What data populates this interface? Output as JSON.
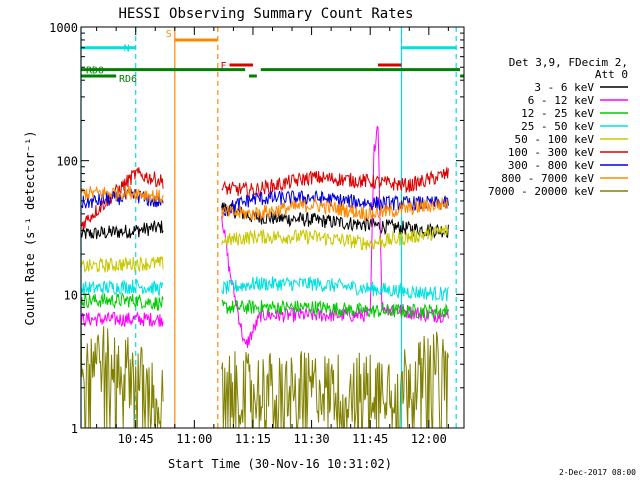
{
  "chart_data": {
    "type": "line",
    "title": "HESSI Observing Summary Count Rates",
    "xlabel": "Start Time (30-Nov-16 10:31:02)",
    "ylabel": "Count Rate (s⁻¹ detector⁻¹)",
    "yscale": "log",
    "ylim": [
      1,
      1000
    ],
    "xlim": [
      "10:31",
      "12:09"
    ],
    "x_ticks": [
      "10:45",
      "11:00",
      "11:15",
      "11:30",
      "11:45",
      "12:00"
    ],
    "y_ticks": [
      "1",
      "10",
      "100",
      "1000"
    ],
    "timestamp": "2-Dec-2017 08:00",
    "legend": {
      "position": "right",
      "header": [
        "Det 3,9, FDecim 2,",
        "Att 0"
      ],
      "entries": [
        {
          "label": "3 - 6 keV",
          "color": "#000000"
        },
        {
          "label": "6 - 12 keV",
          "color": "#ff00ff"
        },
        {
          "label": "12 - 25 keV",
          "color": "#00cc00"
        },
        {
          "label": "25 - 50 keV",
          "color": "#00e0e0"
        },
        {
          "label": "50 - 100 keV",
          "color": "#c8c800"
        },
        {
          "label": "100 - 300 keV",
          "color": "#dd0000"
        },
        {
          "label": "300 - 800 keV",
          "color": "#0000dd"
        },
        {
          "label": "800 - 7000 keV",
          "color": "#ff8800"
        },
        {
          "label": "7000 - 20000 keV",
          "color": "#808000"
        }
      ]
    },
    "data_gaps": [
      [
        "10:54",
        "11:07"
      ]
    ],
    "series": [
      {
        "name": "3 - 6 keV",
        "color": "#000000",
        "segments": [
          {
            "x": [
              "10:31",
              "10:45",
              "10:52"
            ],
            "y": [
              28,
              30,
              32
            ]
          },
          {
            "x": [
              "11:07",
              "11:15",
              "11:30",
              "11:45",
              "11:55",
              "12:05"
            ],
            "y": [
              45,
              38,
              36,
              33,
              31,
              30
            ]
          }
        ]
      },
      {
        "name": "6 - 12 keV",
        "color": "#ff00ff",
        "segments": [
          {
            "x": [
              "10:31",
              "10:45",
              "10:52"
            ],
            "y": [
              6.5,
              6.5,
              6.5
            ]
          },
          {
            "x": [
              "11:07",
              "11:09",
              "11:13",
              "11:17",
              "11:30",
              "11:45",
              "11:46",
              "11:47",
              "11:48",
              "12:00",
              "12:05"
            ],
            "y": [
              40,
              15,
              4,
              7,
              7,
              7,
              120,
              200,
              8,
              7,
              7
            ]
          }
        ]
      },
      {
        "name": "12 - 25 keV",
        "color": "#00cc00",
        "segments": [
          {
            "x": [
              "10:31",
              "10:45",
              "10:52"
            ],
            "y": [
              9,
              9,
              8.5
            ]
          },
          {
            "x": [
              "11:07",
              "11:15",
              "11:30",
              "11:45",
              "12:05"
            ],
            "y": [
              8,
              8,
              8,
              7.5,
              7.5
            ]
          }
        ]
      },
      {
        "name": "25 - 50 keV",
        "color": "#00e0e0",
        "segments": [
          {
            "x": [
              "10:31",
              "10:45",
              "10:52"
            ],
            "y": [
              11,
              11.5,
              11
            ]
          },
          {
            "x": [
              "11:07",
              "11:15",
              "11:30",
              "11:45",
              "12:05"
            ],
            "y": [
              11,
              12,
              12,
              11,
              10
            ]
          }
        ]
      },
      {
        "name": "50 - 100 keV",
        "color": "#c8c800",
        "segments": [
          {
            "x": [
              "10:31",
              "10:45",
              "10:52"
            ],
            "y": [
              16,
              17,
              17
            ]
          },
          {
            "x": [
              "11:07",
              "11:15",
              "11:30",
              "11:45",
              "12:05"
            ],
            "y": [
              25,
              27,
              27,
              24,
              30
            ]
          }
        ]
      },
      {
        "name": "100 - 300 keV",
        "color": "#dd0000",
        "segments": [
          {
            "x": [
              "10:31",
              "10:45",
              "10:52"
            ],
            "y": [
              33,
              80,
              70
            ]
          },
          {
            "x": [
              "11:07",
              "11:15",
              "11:30",
              "11:45",
              "11:55",
              "12:05"
            ],
            "y": [
              62,
              60,
              75,
              70,
              65,
              80
            ]
          }
        ]
      },
      {
        "name": "300 - 800 keV",
        "color": "#0000dd",
        "segments": [
          {
            "x": [
              "10:31",
              "10:45",
              "10:52"
            ],
            "y": [
              48,
              55,
              47
            ]
          },
          {
            "x": [
              "11:07",
              "11:15",
              "11:30",
              "11:45",
              "12:05"
            ],
            "y": [
              42,
              52,
              53,
              48,
              48
            ]
          }
        ]
      },
      {
        "name": "800 - 7000 keV",
        "color": "#ff8800",
        "segments": [
          {
            "x": [
              "10:31",
              "10:45",
              "10:52"
            ],
            "y": [
              57,
              58,
              53
            ]
          },
          {
            "x": [
              "11:07",
              "11:15",
              "11:30",
              "11:45",
              "12:05"
            ],
            "y": [
              41,
              40,
              47,
              40,
              48
            ]
          }
        ]
      },
      {
        "name": "7000 - 20000 keV",
        "color": "#808000",
        "segments": [
          {
            "x": [
              "10:31",
              "10:45",
              "10:52"
            ],
            "y": [
              4,
              2.5,
              1.5
            ]
          },
          {
            "x": [
              "11:07",
              "11:15",
              "11:30",
              "11:45",
              "12:05"
            ],
            "y": [
              2,
              2,
              2,
              2,
              3
            ]
          }
        ]
      }
    ],
    "annotations": [
      {
        "label": "N",
        "color": "#00e0e0",
        "x_start": "10:31",
        "x_end": "10:45",
        "level": 700
      },
      {
        "label": "",
        "color": "#00e0e0",
        "x_start": "11:53",
        "x_end": "12:07",
        "level": 700
      },
      {
        "label": "S",
        "color": "#ff8800",
        "x_start": "10:55",
        "x_end": "11:06",
        "level": 800
      },
      {
        "label": "F",
        "color": "#dd0000",
        "x_start": "11:09",
        "x_end": "11:15",
        "level": 520
      },
      {
        "label": "",
        "color": "#dd0000",
        "x_start": "11:47",
        "x_end": "11:53",
        "level": 520
      },
      {
        "label": "RD0",
        "color": "#008000",
        "x_start": "10:31",
        "x_end": "11:13",
        "level": 480
      },
      {
        "label": "",
        "color": "#008000",
        "x_start": "11:17",
        "x_end": "12:08",
        "level": 480
      },
      {
        "label": "RD6",
        "color": "#008000",
        "x_start": "10:31",
        "x_end": "10:40",
        "level": 430
      },
      {
        "label": "",
        "color": "#008000",
        "x_start": "11:14",
        "x_end": "11:16",
        "level": 430
      },
      {
        "label": "",
        "color": "#008000",
        "x_start": "12:08",
        "x_end": "12:09",
        "level": 430
      }
    ],
    "markers": [
      {
        "time": "10:31",
        "color": "#00e0e0",
        "style": "solid"
      },
      {
        "time": "10:45",
        "color": "#00e0e0",
        "style": "dashed"
      },
      {
        "time": "10:55",
        "color": "#ff8800",
        "style": "solid"
      },
      {
        "time": "11:06",
        "color": "#ff8800",
        "style": "dashed"
      },
      {
        "time": "11:53",
        "color": "#00e0e0",
        "style": "solid"
      },
      {
        "time": "12:07",
        "color": "#00e0e0",
        "style": "dashed"
      }
    ]
  }
}
